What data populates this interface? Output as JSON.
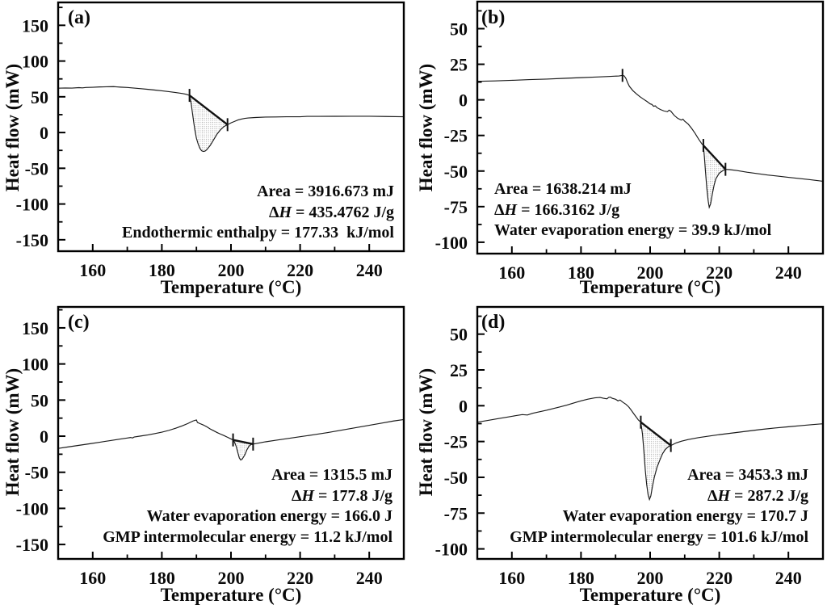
{
  "chart_data": [
    {
      "type": "line",
      "panel_label": "(a)",
      "xlabel": "Temperature (°C)",
      "ylabel": "Heat flow (mW)",
      "xlim": [
        150,
        250
      ],
      "ylim": [
        -166,
        182
      ],
      "xticks": [
        160,
        180,
        200,
        220,
        240
      ],
      "yticks": [
        150,
        100,
        50,
        0,
        -50,
        -100,
        -150
      ],
      "grid": false,
      "legend": "none",
      "annotations": {
        "align": "right",
        "lines": [
          "Area = 3916.673 mJ",
          "Δ<i>H</i> = 435.4762 J/g",
          "Endothermic enthalpy = 177.33&nbsp; kJ/mol"
        ]
      },
      "markers": [
        [
          188,
          52
        ],
        [
          199,
          11
        ]
      ],
      "shade": {
        "from": 188,
        "to": 199
      },
      "curve": [
        [
          150,
          62
        ],
        [
          152,
          62.3
        ],
        [
          154,
          62.2
        ],
        [
          156,
          62.8
        ],
        [
          157,
          62.4
        ],
        [
          158,
          63
        ],
        [
          160,
          63.3
        ],
        [
          162,
          63.8
        ],
        [
          164,
          64
        ],
        [
          166,
          64.2
        ],
        [
          167,
          63.8
        ],
        [
          168,
          63.5
        ],
        [
          170,
          63
        ],
        [
          172,
          62.2
        ],
        [
          174,
          61.3
        ],
        [
          176,
          60.4
        ],
        [
          178,
          59.4
        ],
        [
          180,
          58.3
        ],
        [
          182,
          57.2
        ],
        [
          184,
          56
        ],
        [
          186,
          54.5
        ],
        [
          187,
          53.5
        ],
        [
          188,
          52
        ],
        [
          188.5,
          40
        ],
        [
          189,
          22
        ],
        [
          189.5,
          5
        ],
        [
          190,
          -8
        ],
        [
          190.5,
          -16
        ],
        [
          191,
          -22
        ],
        [
          191.5,
          -25.5
        ],
        [
          192,
          -26.5
        ],
        [
          192.5,
          -26
        ],
        [
          193,
          -24
        ],
        [
          194,
          -18
        ],
        [
          195,
          -10
        ],
        [
          196,
          -2
        ],
        [
          197,
          4
        ],
        [
          198,
          8.5
        ],
        [
          199,
          11
        ],
        [
          200,
          13.5
        ],
        [
          201,
          15.5
        ],
        [
          202,
          17.5
        ],
        [
          203,
          18.8
        ],
        [
          204,
          19.8
        ],
        [
          205,
          20.4
        ],
        [
          207,
          21
        ],
        [
          210,
          21.6
        ],
        [
          213,
          21.8
        ],
        [
          216,
          22
        ],
        [
          220,
          22
        ],
        [
          222,
          22.6
        ],
        [
          225,
          22.6
        ],
        [
          230,
          22.7
        ],
        [
          235,
          22.8
        ],
        [
          240,
          22.8
        ],
        [
          245,
          22.4
        ],
        [
          250,
          22
        ]
      ]
    },
    {
      "type": "line",
      "panel_label": "(b)",
      "xlabel": "Temperature (°C)",
      "ylabel": "Heat flow (mW)",
      "xlim": [
        150,
        250
      ],
      "ylim": [
        -108,
        69
      ],
      "xticks": [
        160,
        180,
        200,
        220,
        240
      ],
      "yticks": [
        50,
        25,
        0,
        -25,
        -50,
        -75,
        -100
      ],
      "grid": false,
      "legend": "none",
      "annotations": {
        "align": "left",
        "lines": [
          "Area = 1638.214 mJ",
          "Δ<i>H</i> = 166.3162 J/g",
          "Water evaporation energy = 39.9 kJ/mol"
        ]
      },
      "markers": [
        [
          192,
          17.2
        ],
        [
          215.4,
          -32
        ],
        [
          221.8,
          -48.8
        ]
      ],
      "shade": {
        "from": 215.4,
        "to": 221.8
      },
      "curve": [
        [
          150,
          13
        ],
        [
          155,
          13.3
        ],
        [
          160,
          13.7
        ],
        [
          165,
          14.2
        ],
        [
          170,
          14.6
        ],
        [
          175,
          15.1
        ],
        [
          180,
          15.6
        ],
        [
          184,
          16
        ],
        [
          188,
          16.4
        ],
        [
          191,
          16.8
        ],
        [
          192,
          17.2
        ],
        [
          192.5,
          16.8
        ],
        [
          193,
          15
        ],
        [
          193.5,
          12
        ],
        [
          194,
          9.5
        ],
        [
          195,
          6.5
        ],
        [
          196,
          4.3
        ],
        [
          197,
          2.3
        ],
        [
          198,
          0.6
        ],
        [
          199,
          -1
        ],
        [
          200,
          -2.8
        ],
        [
          200.5,
          -3.2
        ],
        [
          201,
          -4.5
        ],
        [
          201.5,
          -4.2
        ],
        [
          202,
          -5.5
        ],
        [
          203,
          -6.8
        ],
        [
          204,
          -7.8
        ],
        [
          205,
          -8.3
        ],
        [
          205.5,
          -7.2
        ],
        [
          206,
          -8
        ],
        [
          206.5,
          -9.5
        ],
        [
          207,
          -11
        ],
        [
          208,
          -13
        ],
        [
          209,
          -14.2
        ],
        [
          209.5,
          -13.6
        ],
        [
          210,
          -15
        ],
        [
          211,
          -17
        ],
        [
          212,
          -20
        ],
        [
          213,
          -23.5
        ],
        [
          214,
          -27.5
        ],
        [
          215,
          -31
        ],
        [
          215.4,
          -32
        ],
        [
          215.7,
          -40
        ],
        [
          216,
          -50
        ],
        [
          216.4,
          -62
        ],
        [
          216.8,
          -71
        ],
        [
          217.1,
          -75.5
        ],
        [
          217.5,
          -73
        ],
        [
          218,
          -66
        ],
        [
          218.5,
          -60
        ],
        [
          219,
          -55.5
        ],
        [
          220,
          -51.5
        ],
        [
          221,
          -49.8
        ],
        [
          221.8,
          -48.8
        ],
        [
          223,
          -49
        ],
        [
          225,
          -49.6
        ],
        [
          228,
          -50.8
        ],
        [
          231,
          -51.8
        ],
        [
          234,
          -52.8
        ],
        [
          237,
          -53.6
        ],
        [
          240,
          -54.4
        ],
        [
          243,
          -55.2
        ],
        [
          246,
          -56
        ],
        [
          250,
          -57.2
        ]
      ]
    },
    {
      "type": "line",
      "panel_label": "(c)",
      "xlabel": "Temperature (°C)",
      "ylabel": "Heat flow (mW)",
      "xlim": [
        150,
        250
      ],
      "ylim": [
        -170,
        179
      ],
      "xticks": [
        160,
        180,
        200,
        220,
        240
      ],
      "yticks": [
        150,
        100,
        50,
        0,
        -50,
        -100,
        -150
      ],
      "grid": false,
      "legend": "none",
      "annotations": {
        "align": "right",
        "lines": [
          "Area = 1315.5 mJ",
          "Δ<i>H</i> = 177.8 J/g",
          "Water evaporation energy = 166.0 J",
          "GMP intermolecular energy = 11.2 kJ/mol"
        ]
      },
      "markers": [
        [
          200.6,
          -5.2
        ],
        [
          206.4,
          -11
        ]
      ],
      "shade": {
        "from": 200.6,
        "to": 206.4
      },
      "curve": [
        [
          150,
          -17
        ],
        [
          153,
          -14.8
        ],
        [
          156,
          -12.7
        ],
        [
          159,
          -10.6
        ],
        [
          162,
          -8.4
        ],
        [
          165,
          -6.2
        ],
        [
          168,
          -4
        ],
        [
          170,
          -2.5
        ],
        [
          171,
          -1.8
        ],
        [
          171.5,
          -2.5
        ],
        [
          172,
          -1.2
        ],
        [
          174,
          0.3
        ],
        [
          176,
          1.8
        ],
        [
          178,
          3.6
        ],
        [
          180,
          5.5
        ],
        [
          182,
          8
        ],
        [
          184,
          11
        ],
        [
          186,
          14.5
        ],
        [
          187.5,
          17.5
        ],
        [
          189,
          21
        ],
        [
          190,
          22.5
        ],
        [
          190.3,
          19
        ],
        [
          191,
          17.5
        ],
        [
          192,
          15.5
        ],
        [
          193,
          13
        ],
        [
          194,
          10
        ],
        [
          195,
          7.5
        ],
        [
          196,
          5
        ],
        [
          197,
          2.8
        ],
        [
          198,
          0.8
        ],
        [
          199,
          -1.5
        ],
        [
          200,
          -3.8
        ],
        [
          200.6,
          -5.2
        ],
        [
          201,
          -8
        ],
        [
          201.5,
          -14
        ],
        [
          202,
          -23
        ],
        [
          202.4,
          -30
        ],
        [
          202.8,
          -33
        ],
        [
          203.2,
          -32
        ],
        [
          204,
          -26
        ],
        [
          204.6,
          -19
        ],
        [
          205.2,
          -14
        ],
        [
          205.8,
          -11.5
        ],
        [
          206.4,
          -11
        ],
        [
          208,
          -9.5
        ],
        [
          210,
          -7.8
        ],
        [
          213,
          -5.6
        ],
        [
          216,
          -3.5
        ],
        [
          220,
          -0.8
        ],
        [
          224,
          2
        ],
        [
          228,
          5
        ],
        [
          232,
          8.3
        ],
        [
          236,
          11.7
        ],
        [
          240,
          15
        ],
        [
          244,
          18.4
        ],
        [
          247,
          21
        ],
        [
          250,
          23
        ]
      ]
    },
    {
      "type": "line",
      "panel_label": "(d)",
      "xlabel": "Temperature (°C)",
      "ylabel": "Heat flow (mW)",
      "xlim": [
        150,
        250
      ],
      "ylim": [
        -107,
        69
      ],
      "xticks": [
        160,
        180,
        200,
        220,
        240
      ],
      "yticks": [
        50,
        25,
        0,
        -25,
        -50,
        -75,
        -100
      ],
      "grid": false,
      "legend": "none",
      "annotations": {
        "align": "right",
        "lines": [
          "Area = 3453.3 mJ",
          "Δ<i>H</i> = 287.2 J/g",
          "Water evaporation energy = 170.7 J",
          "GMP intermolecular energy = 101.6 kJ/mol"
        ]
      },
      "markers": [
        [
          197.3,
          -11.5
        ],
        [
          206,
          -27.8
        ]
      ],
      "shade": {
        "from": 197.3,
        "to": 206
      },
      "curve": [
        [
          150,
          -11.5
        ],
        [
          153,
          -10.3
        ],
        [
          156,
          -9
        ],
        [
          159,
          -7.8
        ],
        [
          161,
          -7
        ],
        [
          163,
          -6.2
        ],
        [
          164.5,
          -6.5
        ],
        [
          166,
          -5.3
        ],
        [
          168,
          -4.2
        ],
        [
          170,
          -3.2
        ],
        [
          172,
          -2
        ],
        [
          174,
          -0.8
        ],
        [
          176,
          0.5
        ],
        [
          178,
          2
        ],
        [
          180,
          3.4
        ],
        [
          182,
          4.6
        ],
        [
          184,
          5.5
        ],
        [
          185.5,
          5.8
        ],
        [
          186.5,
          5.2
        ],
        [
          187.5,
          4.8
        ],
        [
          188,
          5.8
        ],
        [
          188.5,
          6
        ],
        [
          189,
          5.2
        ],
        [
          190,
          4.5
        ],
        [
          190.7,
          3.4
        ],
        [
          191.3,
          4
        ],
        [
          192,
          2.6
        ],
        [
          193,
          1
        ],
        [
          193.8,
          -0.8
        ],
        [
          194.5,
          -3
        ],
        [
          195.2,
          -5.4
        ],
        [
          196,
          -8
        ],
        [
          196.6,
          -10
        ],
        [
          197.3,
          -11.5
        ],
        [
          197.8,
          -20
        ],
        [
          198.2,
          -32
        ],
        [
          198.6,
          -45
        ],
        [
          199,
          -55
        ],
        [
          199.4,
          -62
        ],
        [
          199.8,
          -65.5
        ],
        [
          200.2,
          -63
        ],
        [
          200.7,
          -56
        ],
        [
          201.2,
          -50
        ],
        [
          202,
          -43
        ],
        [
          202.8,
          -38
        ],
        [
          203.6,
          -33.5
        ],
        [
          204.4,
          -30.5
        ],
        [
          205.2,
          -28.8
        ],
        [
          206,
          -27.8
        ],
        [
          207.5,
          -26
        ],
        [
          209,
          -24.8
        ],
        [
          211,
          -23.6
        ],
        [
          214,
          -22.3
        ],
        [
          217,
          -21.2
        ],
        [
          220,
          -20.2
        ],
        [
          224,
          -19
        ],
        [
          228,
          -17.8
        ],
        [
          232,
          -16.6
        ],
        [
          236,
          -15.6
        ],
        [
          240,
          -14.7
        ],
        [
          244,
          -13.8
        ],
        [
          247,
          -13.2
        ],
        [
          250,
          -12.6
        ]
      ]
    }
  ]
}
